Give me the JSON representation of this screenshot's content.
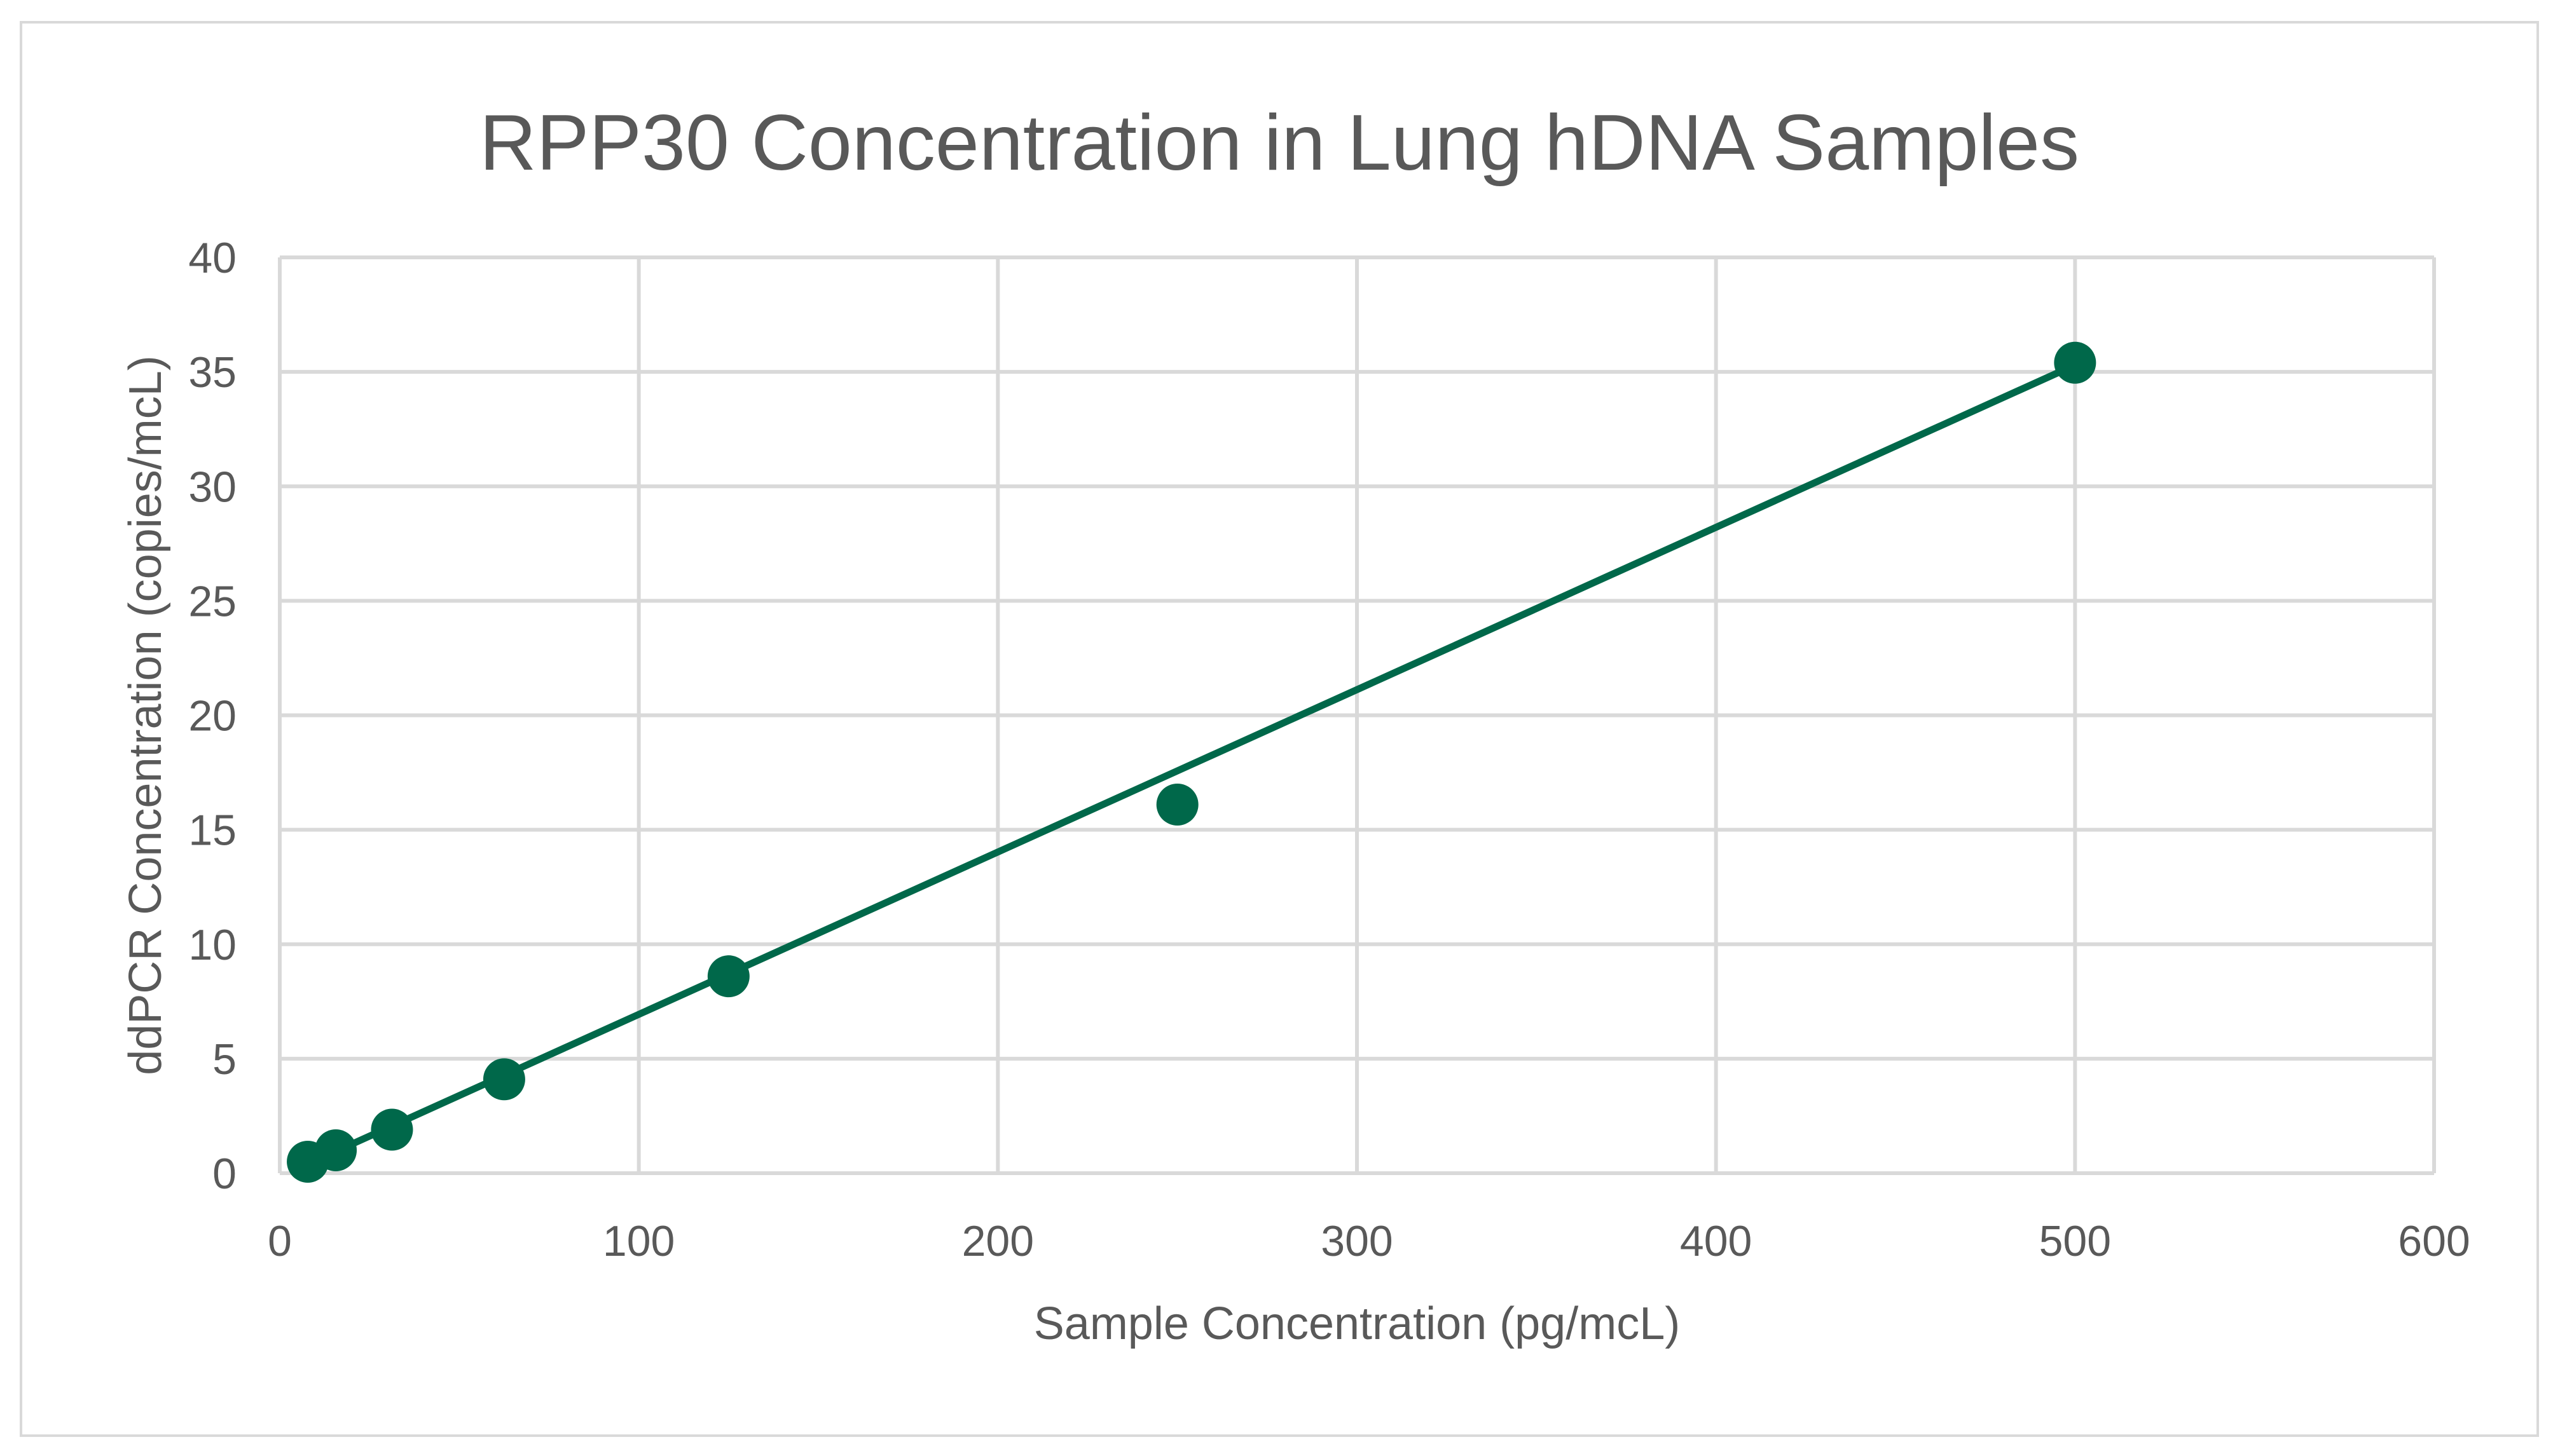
{
  "chart_data": {
    "type": "scatter",
    "title": "RPP30 Concentration in Lung hDNA Samples",
    "xlabel": "Sample Concentration (pg/mcL)",
    "ylabel": "ddPCR Concentration (copies/mcL)",
    "xlim": [
      0,
      600
    ],
    "ylim": [
      0,
      40
    ],
    "x_ticks": [
      "0",
      "100",
      "200",
      "300",
      "400",
      "500",
      "600"
    ],
    "y_ticks": [
      "0",
      "5",
      "10",
      "15",
      "20",
      "25",
      "30",
      "35",
      "40"
    ],
    "grid": true,
    "series": [
      {
        "name": "RPP30",
        "color": "#00684a",
        "x": [
          7.8,
          15.6,
          31.25,
          62.5,
          125,
          250,
          500
        ],
        "y": [
          0.5,
          1.0,
          1.9,
          4.1,
          8.6,
          16.1,
          35.4
        ]
      }
    ],
    "trendline": {
      "type": "linear",
      "color": "#00684a",
      "x": [
        7.8,
        500
      ],
      "y": [
        0.4,
        35.3
      ]
    }
  }
}
